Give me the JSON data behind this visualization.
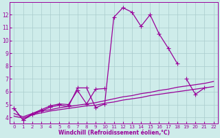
{
  "xlabel": "Windchill (Refroidissement éolien,°C)",
  "x": [
    0,
    1,
    2,
    3,
    4,
    5,
    6,
    7,
    8,
    9,
    10,
    11,
    12,
    13,
    14,
    15,
    16,
    17,
    18,
    19,
    20,
    21,
    22
  ],
  "line1_x": [
    0,
    1,
    2,
    3,
    4,
    5,
    6,
    7,
    8,
    9,
    10,
    11,
    12,
    13,
    14,
    15,
    16,
    17,
    18
  ],
  "line1_y": [
    4.7,
    3.8,
    4.2,
    4.5,
    4.8,
    4.95,
    4.85,
    6.3,
    6.3,
    4.75,
    5.05,
    11.8,
    12.55,
    12.2,
    11.1,
    12.0,
    10.5,
    9.4,
    8.2
  ],
  "line2_segments": [
    {
      "x": [
        0,
        1,
        2,
        3,
        4,
        5,
        6,
        7,
        8,
        9,
        10
      ],
      "y": [
        4.7,
        3.8,
        4.3,
        4.6,
        4.9,
        5.05,
        5.0,
        6.1,
        5.05,
        6.2,
        6.25
      ]
    },
    {
      "x": [
        19,
        20,
        21
      ],
      "y": [
        7.0,
        5.8,
        6.3
      ]
    }
  ],
  "line3_x": [
    0,
    1,
    2,
    3,
    4,
    5,
    6,
    7,
    8,
    9,
    10,
    11,
    12,
    13,
    14,
    15,
    16,
    17,
    18,
    19,
    20,
    21,
    22
  ],
  "line3_y": [
    4.1,
    3.95,
    4.2,
    4.35,
    4.5,
    4.6,
    4.7,
    4.8,
    4.9,
    4.95,
    5.1,
    5.2,
    5.35,
    5.45,
    5.55,
    5.7,
    5.8,
    5.9,
    6.0,
    6.1,
    6.2,
    6.3,
    6.4
  ],
  "line4_x": [
    0,
    1,
    2,
    3,
    4,
    5,
    6,
    7,
    8,
    9,
    10,
    11,
    12,
    13,
    14,
    15,
    16,
    17,
    18,
    19,
    20,
    21,
    22
  ],
  "line4_y": [
    4.3,
    4.05,
    4.3,
    4.5,
    4.6,
    4.75,
    4.85,
    4.95,
    5.05,
    5.15,
    5.3,
    5.45,
    5.6,
    5.7,
    5.85,
    5.95,
    6.1,
    6.2,
    6.35,
    6.45,
    6.55,
    6.65,
    6.8
  ],
  "color": "#990099",
  "bg_color": "#ceecea",
  "grid_color": "#aacccc",
  "xlim": [
    -0.5,
    22.5
  ],
  "ylim": [
    3.5,
    13.0
  ],
  "yticks": [
    4,
    5,
    6,
    7,
    8,
    9,
    10,
    11,
    12
  ],
  "xticks": [
    0,
    1,
    2,
    3,
    4,
    5,
    6,
    7,
    8,
    9,
    10,
    11,
    12,
    13,
    14,
    15,
    16,
    17,
    18,
    19,
    20,
    21,
    22
  ],
  "tick_fontsize": 5.0,
  "xlabel_fontsize": 5.5,
  "lw": 0.9,
  "marker_size": 2.2
}
